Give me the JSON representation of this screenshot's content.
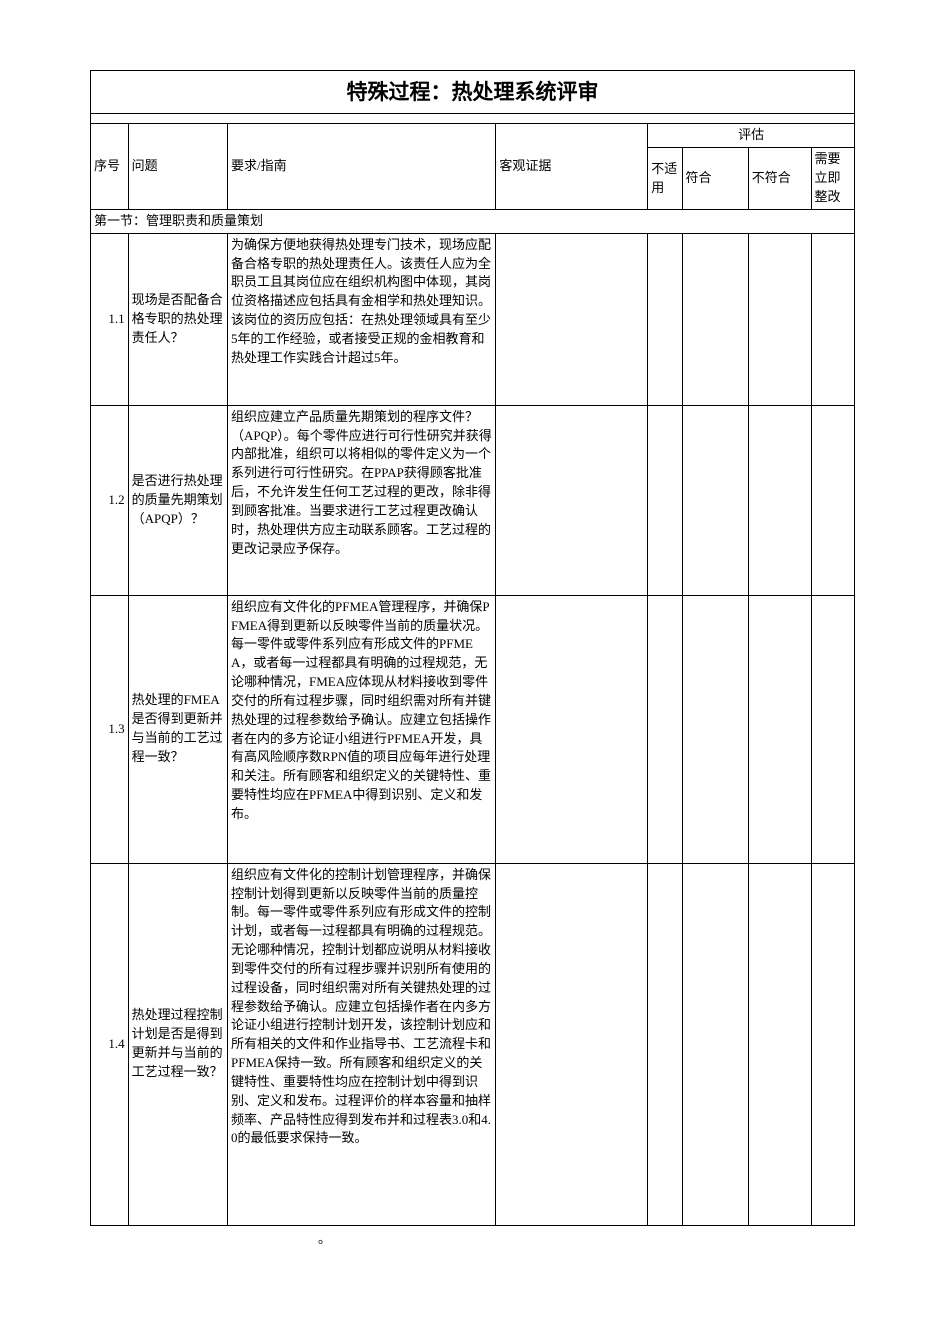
{
  "document": {
    "title": "特殊过程：热处理系统评审",
    "evaluation_header": "评估",
    "columns": {
      "seq": "序号",
      "question": "问题",
      "requirement": "要求/指南",
      "evidence": "客观证据",
      "not_applicable": "不适用",
      "conform": "符合",
      "not_conform": "不符合",
      "need_fix": "需要立即整改"
    },
    "section_header": "第一节：管理职责和质量策划",
    "rows": [
      {
        "seq": "1.1",
        "question": "现场是否配备合格专职的热处理责任人？",
        "requirement": "为确保方便地获得热处理专门技术，现场应配备合格专职的热处理责任人。该责任人应为全职员工且其岗位应在组织机构图中体现，其岗位资格描述应包括具有金相学和热处理知识。该岗位的资历应包括：在热处理领域具有至少5年的工作经验，或者接受正规的金相教育和热处理工作实践合计超过5年。"
      },
      {
        "seq": "1.2",
        "question": "是否进行热处理的质量先期策划（APQP）？",
        "requirement": "组织应建立产品质量先期策划的程序文件？（APQP）。每个零件应进行可行性研究并获得内部批准，组织可以将相似的零件定义为一个系列进行可行性研究。在PPAP获得顾客批准后，不允许发生任何工艺过程的更改，除非得到顾客批准。当要求进行工艺过程更改确认时，热处理供方应主动联系顾客。工艺过程的更改记录应予保存。"
      },
      {
        "seq": "1.3",
        "question": "热处理的FMEA是否得到更新并与当前的工艺过程一致？",
        "requirement": "组织应有文件化的PFMEA管理程序，并确保PFMEA得到更新以反映零件当前的质量状况。每一零件或零件系列应有形成文件的PFMEA，或者每一过程都具有明确的过程规范，无论哪种情况，FMEA应体现从材料接收到零件交付的所有过程步骤，同时组织需对所有并键热处理的过程参数给予确认。应建立包括操作者在内的多方论证小组进行PFMEA开发，具有高风险顺序数RPN值的项目应每年进行处理和关注。所有顾客和组织定义的关键特性、重要特性均应在PFMEA中得到识别、定义和发布。"
      },
      {
        "seq": "1.4",
        "question": "热处理过程控制计划是否是得到更新并与当前的工艺过程一致？",
        "requirement": "组织应有文件化的控制计划管理程序，并确保控制计划得到更新以反映零件当前的质量控制。每一零件或零件系列应有形成文件的控制计划，或者每一过程都具有明确的过程规范。无论哪种情况，控制计划都应说明从材料接收到零件交付的所有过程步骤并识别所有使用的过程设备，同时组织需对所有关键热处理的过程参数给予确认。应建立包括操作者在内多方论证小组进行控制计划开发，该控制计划应和所有相关的文件和作业指导书、工艺流程卡和PFMEA保持一致。所有顾客和组织定义的关键特性、重要特性均应在控制计划中得到识别、定义和发布。过程评价的样本容量和抽样频率、产品特性应得到发布并和过程表3.0和4.0的最低要求保持一致。"
      }
    ],
    "footer_dot": "。"
  },
  "layout": {
    "col_widths": {
      "seq": "33",
      "question": "87",
      "requirement": "235",
      "evidence": "133",
      "not_applicable": "30",
      "conform": "58",
      "not_conform": "55",
      "need_fix": "38"
    }
  }
}
